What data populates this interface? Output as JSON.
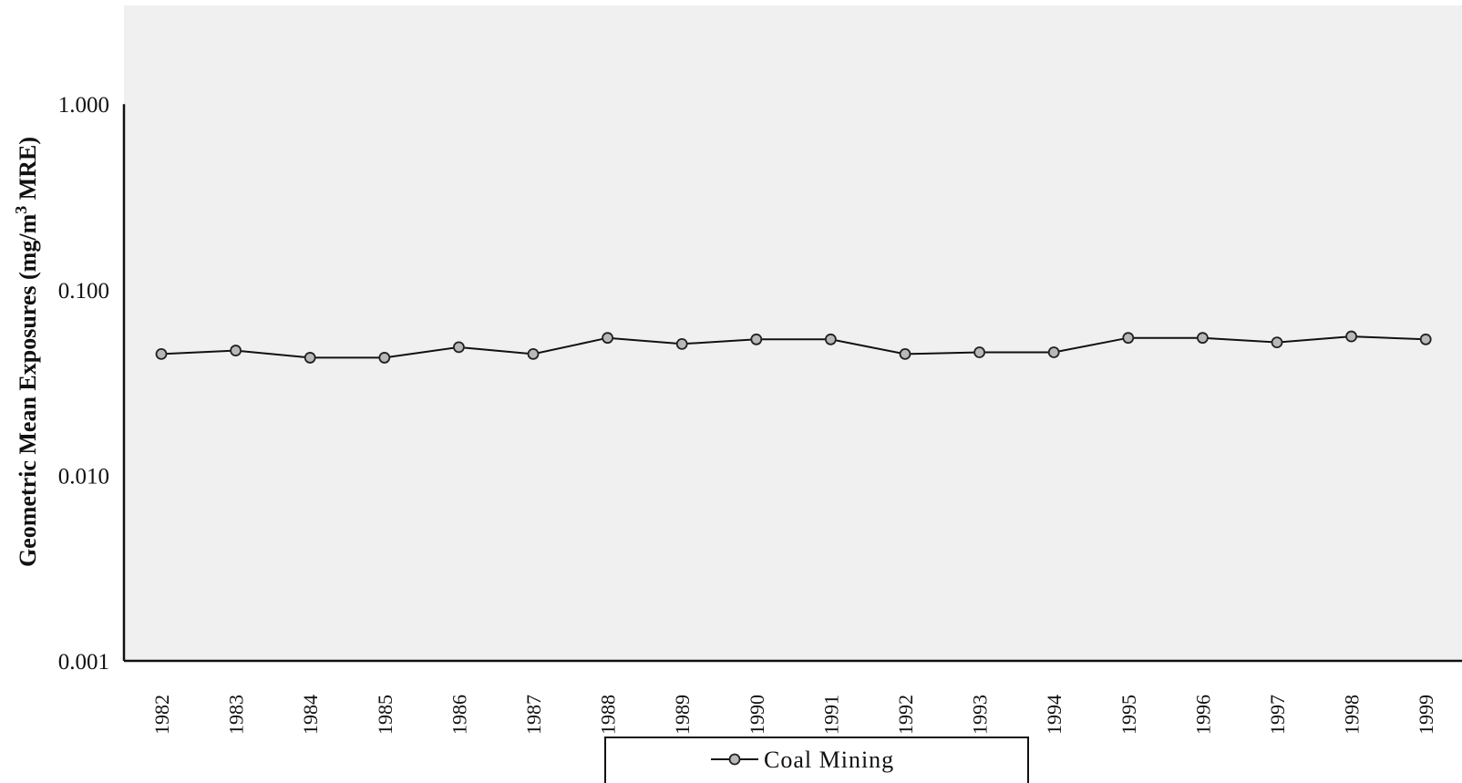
{
  "chart_data": {
    "type": "line",
    "ylabel": "Geometric Mean Exposures (mg/m",
    "ylabel_superscript": "3",
    "ylabel_suffix": " MRE)",
    "xlabel": "",
    "yscale": "log",
    "ylim": [
      0.001,
      3.4
    ],
    "y_ticks": [
      0.001,
      0.01,
      0.1,
      1.0
    ],
    "y_tick_labels": [
      "0.001",
      "0.010",
      "0.100",
      "1.000"
    ],
    "x": [
      "1982",
      "1983",
      "1984",
      "1985",
      "1986",
      "1987",
      "1988",
      "1989",
      "1990",
      "1991",
      "1992",
      "1993",
      "1994",
      "1995",
      "1996",
      "1997",
      "1998",
      "1999"
    ],
    "series": [
      {
        "name": "Coal Mining",
        "values": [
          0.045,
          0.047,
          0.043,
          0.043,
          0.049,
          0.045,
          0.055,
          0.051,
          0.054,
          0.054,
          0.045,
          0.046,
          0.046,
          0.055,
          0.055,
          0.052,
          0.056,
          0.054
        ]
      }
    ],
    "legend_position": "bottom-center",
    "grid": false
  },
  "colors": {
    "plot_background": "#f0f0f0",
    "line": "#111111",
    "marker_fill": "#b8b8b8",
    "marker_stroke": "#222222",
    "axis": "#111111"
  }
}
